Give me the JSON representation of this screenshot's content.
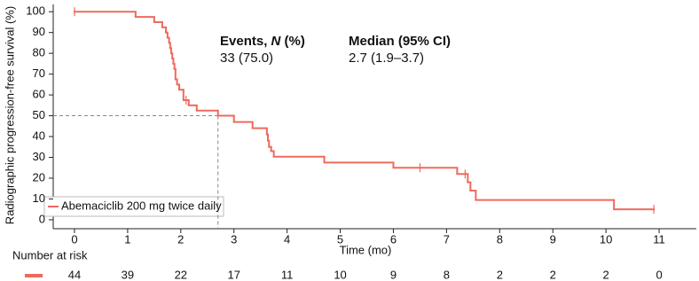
{
  "chart_data": {
    "type": "km",
    "y_label": "Radiographic progression-free survival (%)",
    "x_label": "Time (mo)",
    "xlim": [
      -0.4,
      11.7
    ],
    "ylim": [
      -4.3,
      103.5
    ],
    "xticks": [
      0,
      1,
      2,
      3,
      4,
      5,
      6,
      7,
      8,
      9,
      10,
      11
    ],
    "yticks": [
      0,
      10,
      20,
      30,
      40,
      50,
      60,
      70,
      80,
      90,
      100
    ],
    "series": [
      {
        "name": "Abemaciclib 200 mg twice daily",
        "color": "#ee6a5e",
        "x": [
          0,
          1.15,
          1.5,
          1.65,
          1.72,
          1.75,
          1.78,
          1.8,
          1.82,
          1.84,
          1.86,
          1.88,
          1.9,
          1.93,
          1.97,
          2.05,
          2.15,
          2.3,
          2.7,
          3.0,
          3.35,
          3.62,
          3.64,
          3.66,
          3.7,
          3.75,
          4.7,
          6.0,
          7.2,
          7.4,
          7.45,
          7.55,
          10.15,
          10.9
        ],
        "values": [
          100,
          97.5,
          95,
          92.5,
          90,
          87.5,
          85,
          82.5,
          80,
          77.5,
          75,
          72.5,
          67.5,
          65,
          62.5,
          57.5,
          55,
          52.5,
          50,
          47,
          44,
          41,
          38,
          35,
          33,
          30.3,
          27.5,
          25,
          22,
          18,
          14,
          9.5,
          5,
          5
        ],
        "censored_x": [
          0,
          2.1,
          6.5,
          7.35,
          10.9
        ],
        "censored_values": [
          100,
          57.5,
          25,
          22,
          5
        ]
      }
    ],
    "median_line": {
      "x": 2.7,
      "y": 50
    },
    "events_title": [
      "Events, ",
      "N",
      " (%)"
    ],
    "events_value": "33 (75.0)",
    "median_title": "Median (95% CI)",
    "median_value": "2.7 (1.9–3.7)",
    "risk_title": "Number at risk",
    "risk_counts": [
      44,
      39,
      22,
      17,
      11,
      10,
      9,
      8,
      2,
      2,
      2,
      0
    ]
  }
}
